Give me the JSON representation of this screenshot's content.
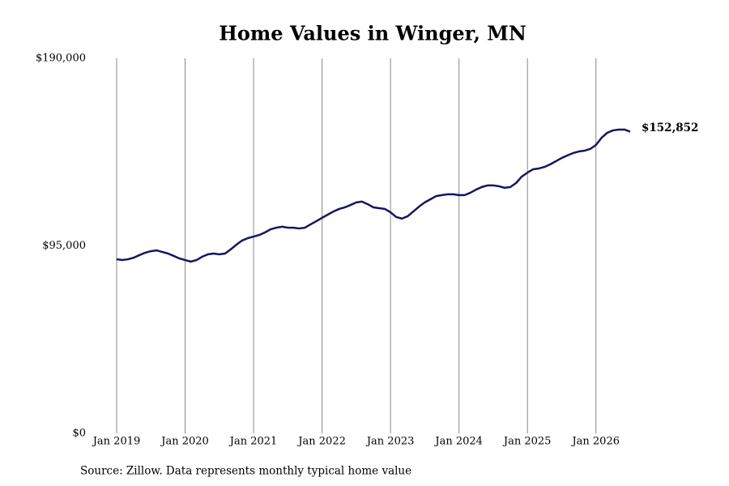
{
  "chart_data": {
    "type": "line",
    "title": "Home Values in Winger, MN",
    "source": "Source: Zillow. Data represents monthly typical home value",
    "x": [
      "2019-01",
      "2019-02",
      "2019-03",
      "2019-04",
      "2019-05",
      "2019-06",
      "2019-07",
      "2019-08",
      "2019-09",
      "2019-10",
      "2019-11",
      "2019-12",
      "2020-01",
      "2020-02",
      "2020-03",
      "2020-04",
      "2020-05",
      "2020-06",
      "2020-07",
      "2020-08",
      "2020-09",
      "2020-10",
      "2020-11",
      "2020-12",
      "2021-01",
      "2021-02",
      "2021-03",
      "2021-04",
      "2021-05",
      "2021-06",
      "2021-07",
      "2021-08",
      "2021-09",
      "2021-10",
      "2021-11",
      "2021-12",
      "2022-01",
      "2022-02",
      "2022-03",
      "2022-04",
      "2022-05",
      "2022-06",
      "2022-07",
      "2022-08",
      "2022-09",
      "2022-10",
      "2022-11",
      "2022-12",
      "2023-01",
      "2023-02",
      "2023-03",
      "2023-04",
      "2023-05",
      "2023-06",
      "2023-07",
      "2023-08",
      "2023-09",
      "2023-10",
      "2023-11",
      "2023-12",
      "2024-01",
      "2024-02",
      "2024-03",
      "2024-04",
      "2024-05",
      "2024-06",
      "2024-07",
      "2024-08",
      "2024-09",
      "2024-10",
      "2024-11",
      "2024-12",
      "2025-01",
      "2025-02",
      "2025-03",
      "2025-04",
      "2025-05",
      "2025-06",
      "2025-07",
      "2025-08",
      "2025-09",
      "2025-10",
      "2025-11",
      "2025-12",
      "2026-01",
      "2026-02",
      "2026-03",
      "2026-04",
      "2026-05",
      "2026-06",
      "2026-07"
    ],
    "series": [
      {
        "name": "Typical home value",
        "color": "#16165e",
        "values": [
          88200,
          87800,
          88200,
          89000,
          90300,
          91500,
          92300,
          92700,
          91900,
          91100,
          89900,
          88600,
          87800,
          87000,
          87800,
          89500,
          90700,
          91100,
          90700,
          91100,
          93200,
          95600,
          97700,
          98900,
          99700,
          100500,
          101800,
          103400,
          104200,
          104700,
          104200,
          104200,
          103800,
          104200,
          105900,
          107500,
          109200,
          110800,
          112400,
          113700,
          114500,
          115700,
          117000,
          117400,
          116100,
          114500,
          114100,
          113700,
          112000,
          109600,
          108800,
          110000,
          112400,
          114900,
          117000,
          118600,
          120200,
          120700,
          121100,
          121100,
          120700,
          120700,
          121900,
          123500,
          124800,
          125600,
          125600,
          125200,
          124400,
          124800,
          126800,
          130100,
          132100,
          133800,
          134200,
          135000,
          136300,
          137900,
          139500,
          140800,
          142000,
          142800,
          143200,
          144100,
          146100,
          149800,
          152300,
          153500,
          153900,
          153900,
          152852
        ]
      }
    ],
    "annotations": [
      {
        "text": "$152,852",
        "x": "2026-07",
        "value": 152852
      }
    ],
    "xlim": [
      "2019-01",
      "2026-07"
    ],
    "xticks": [
      {
        "value": "2019-01",
        "label": "Jan 2019"
      },
      {
        "value": "2020-01",
        "label": "Jan 2020"
      },
      {
        "value": "2021-01",
        "label": "Jan 2021"
      },
      {
        "value": "2022-01",
        "label": "Jan 2022"
      },
      {
        "value": "2023-01",
        "label": "Jan 2023"
      },
      {
        "value": "2024-01",
        "label": "Jan 2024"
      },
      {
        "value": "2025-01",
        "label": "Jan 2025"
      },
      {
        "value": "2026-01",
        "label": "Jan 2026"
      }
    ],
    "ylim": [
      0,
      190000
    ],
    "yticks": [
      {
        "value": 0,
        "label": "$0"
      },
      {
        "value": 95000,
        "label": "$95,000"
      },
      {
        "value": 190000,
        "label": "$190,000"
      }
    ],
    "grid": "x"
  }
}
